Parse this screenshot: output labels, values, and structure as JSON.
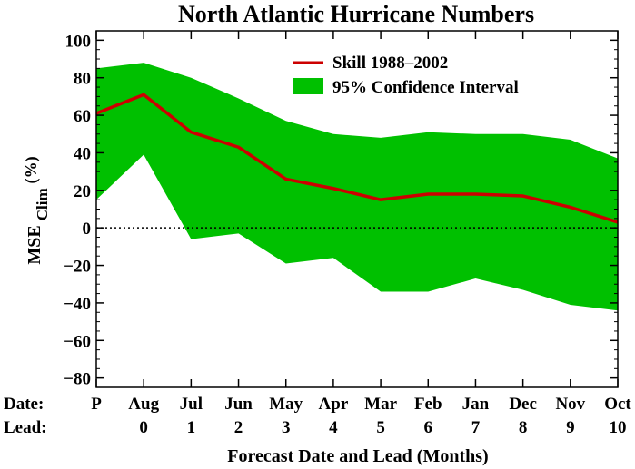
{
  "chart_data": {
    "type": "line",
    "title": "North Atlantic Hurricane Numbers",
    "xlabel": "Forecast Date and Lead (Months)",
    "ylabel": {
      "main": "MSE",
      "sub": "Clim",
      "unit": "(%)"
    },
    "ylim": [
      -85,
      105
    ],
    "yticks": [
      100,
      80,
      60,
      40,
      20,
      0,
      -20,
      -40,
      -60,
      -80
    ],
    "x_row_labels": {
      "date": "Date:",
      "lead": "Lead:"
    },
    "categories": [
      "P",
      "Aug",
      "Jul",
      "Jun",
      "May",
      "Apr",
      "Mar",
      "Feb",
      "Jan",
      "Dec",
      "Nov",
      "Oct"
    ],
    "leads": [
      "",
      "0",
      "1",
      "2",
      "3",
      "4",
      "5",
      "6",
      "7",
      "8",
      "9",
      "10"
    ],
    "series": [
      {
        "name": "Skill 1988–2002",
        "values": [
          61,
          71,
          51,
          43,
          26,
          21,
          15,
          18,
          18,
          17,
          11,
          3
        ]
      }
    ],
    "band": {
      "name": "95% Confidence Interval",
      "upper": [
        85,
        88,
        80,
        69,
        57,
        50,
        48,
        51,
        50,
        50,
        47,
        37
      ],
      "lower": [
        15,
        39,
        -6,
        -3,
        -19,
        -16,
        -34,
        -34,
        -27,
        -33,
        -41,
        -44
      ]
    },
    "reference_line": {
      "y": 0,
      "style": "dotted"
    },
    "legend": {
      "placement": "top-right"
    },
    "grid": false,
    "colors": {
      "line": "#cc0000",
      "band": "#00c000",
      "axis": "#000000"
    }
  }
}
